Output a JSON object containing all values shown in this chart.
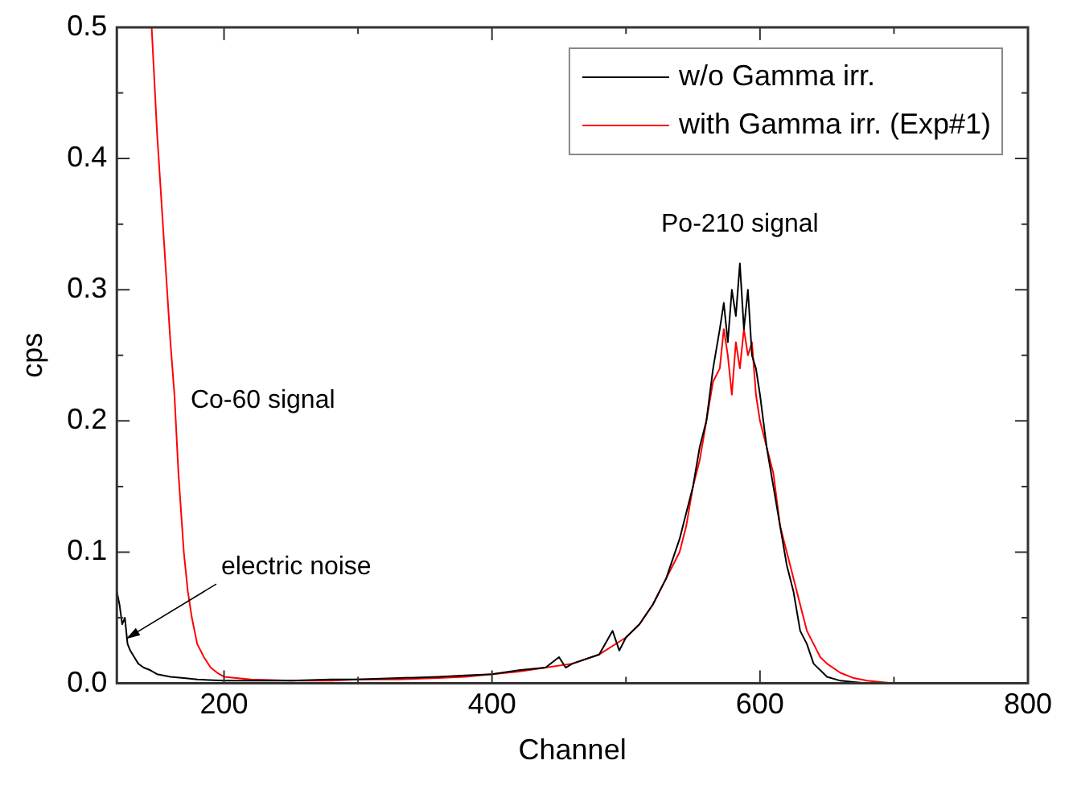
{
  "chart_data": {
    "type": "line",
    "xlabel": "Channel",
    "ylabel": "cps",
    "xlim": [
      120,
      800
    ],
    "ylim": [
      0,
      0.5
    ],
    "xticks": [
      200,
      400,
      600,
      800
    ],
    "yticks": [
      {
        "value": 0,
        "label": "0.0"
      },
      0.1,
      0.2,
      0.3,
      0.4,
      0.5
    ],
    "grid": false,
    "legend": "top right",
    "marker": "none",
    "line_style": "solid",
    "annotations": [
      {
        "text": "Po-210 signal",
        "x": 585,
        "y": 0.32
      },
      {
        "text": "Co-60 signal",
        "x": 163,
        "y": 0.22
      },
      {
        "text": "electric noise",
        "x": 127,
        "y": 0.034
      }
    ],
    "series": [
      {
        "name": "w/o Gamma irr.",
        "color": "#000000",
        "x": [
          120,
          122,
          124,
          126,
          128,
          130,
          133,
          136,
          140,
          145,
          150,
          160,
          170,
          180,
          200,
          220,
          250,
          280,
          300,
          330,
          360,
          380,
          400,
          420,
          440,
          450,
          455,
          460,
          480,
          490,
          495,
          500,
          510,
          520,
          530,
          540,
          545,
          550,
          555,
          560,
          565,
          570,
          573,
          576,
          579,
          582,
          585,
          588,
          591,
          594,
          597,
          600,
          605,
          610,
          615,
          620,
          625,
          630,
          635,
          640,
          645,
          650,
          660,
          670,
          680,
          700,
          750,
          800
        ],
        "values": [
          0.07,
          0.06,
          0.045,
          0.05,
          0.03,
          0.025,
          0.02,
          0.015,
          0.012,
          0.01,
          0.007,
          0.005,
          0.004,
          0.003,
          0.002,
          0.002,
          0.002,
          0.003,
          0.003,
          0.004,
          0.005,
          0.006,
          0.007,
          0.01,
          0.012,
          0.02,
          0.012,
          0.015,
          0.022,
          0.04,
          0.025,
          0.035,
          0.045,
          0.06,
          0.08,
          0.11,
          0.13,
          0.15,
          0.18,
          0.2,
          0.24,
          0.27,
          0.29,
          0.26,
          0.3,
          0.28,
          0.32,
          0.27,
          0.3,
          0.25,
          0.24,
          0.22,
          0.18,
          0.15,
          0.12,
          0.09,
          0.07,
          0.04,
          0.03,
          0.015,
          0.01,
          0.005,
          0.002,
          0.001,
          0,
          0,
          0,
          0
        ]
      },
      {
        "name": "with Gamma irr. (Exp#1)",
        "color": "#ff0000",
        "x": [
          146,
          150,
          155,
          160,
          163,
          166,
          170,
          173,
          176,
          180,
          185,
          190,
          195,
          200,
          220,
          250,
          280,
          300,
          330,
          360,
          380,
          400,
          420,
          440,
          460,
          480,
          500,
          510,
          520,
          530,
          540,
          545,
          550,
          555,
          560,
          565,
          570,
          573,
          576,
          579,
          582,
          585,
          588,
          591,
          594,
          597,
          600,
          605,
          610,
          615,
          620,
          625,
          630,
          635,
          640,
          645,
          650,
          660,
          670,
          680,
          690,
          700,
          750,
          800
        ],
        "values": [
          0.5,
          0.42,
          0.34,
          0.26,
          0.22,
          0.16,
          0.1,
          0.07,
          0.05,
          0.03,
          0.02,
          0.012,
          0.008,
          0.005,
          0.003,
          0.002,
          0.002,
          0.003,
          0.003,
          0.004,
          0.005,
          0.007,
          0.009,
          0.012,
          0.015,
          0.022,
          0.035,
          0.045,
          0.06,
          0.08,
          0.1,
          0.12,
          0.15,
          0.17,
          0.2,
          0.23,
          0.24,
          0.27,
          0.25,
          0.22,
          0.26,
          0.24,
          0.27,
          0.25,
          0.26,
          0.22,
          0.2,
          0.18,
          0.16,
          0.12,
          0.1,
          0.08,
          0.06,
          0.04,
          0.03,
          0.02,
          0.015,
          0.008,
          0.004,
          0.002,
          0.001,
          0,
          0,
          0
        ]
      }
    ]
  }
}
